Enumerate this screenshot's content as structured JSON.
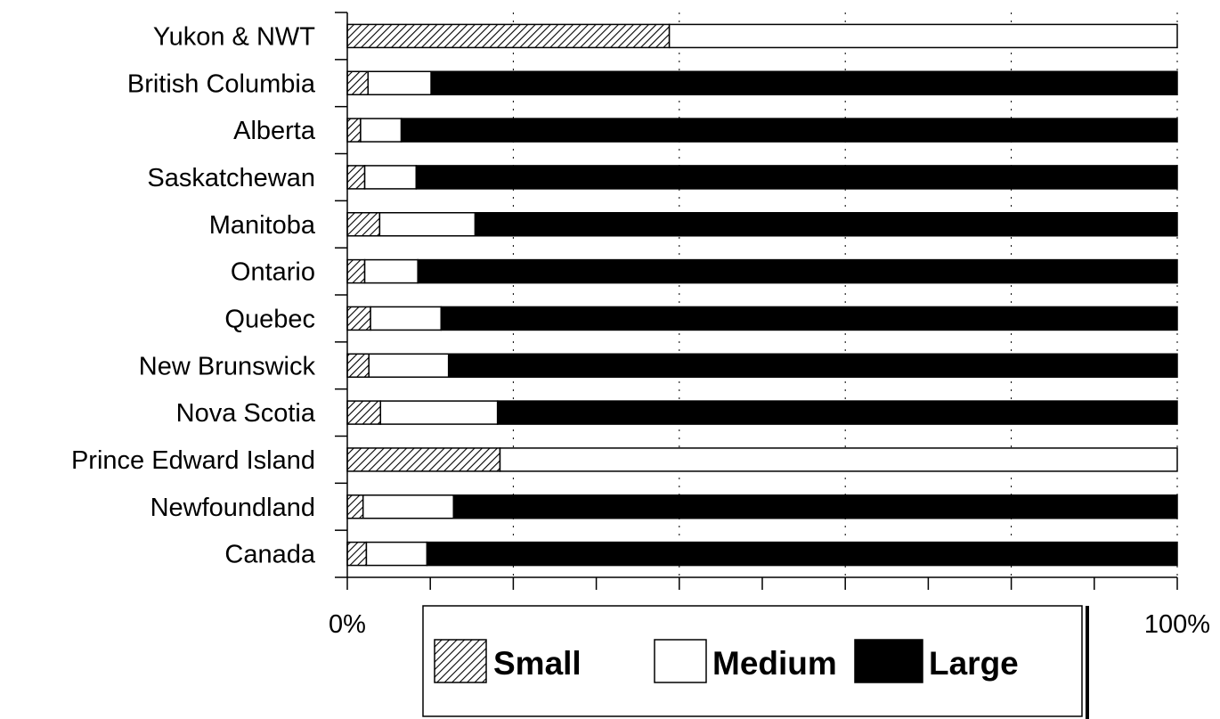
{
  "chart_data": {
    "type": "bar",
    "orientation": "horizontal",
    "stacked": "percent",
    "categories": [
      "Yukon & NWT",
      "British Columbia",
      "Alberta",
      "Saskatchewan",
      "Manitoba",
      "Ontario",
      "Quebec",
      "New Brunswick",
      "Nova Scotia",
      "Prince Edward Island",
      "Newfoundland",
      "Canada"
    ],
    "series": [
      {
        "name": "Small",
        "pattern": "hatch",
        "color": "#ffffff",
        "values": [
          38.8,
          2.5,
          1.6,
          2.1,
          3.9,
          2.1,
          2.8,
          2.6,
          4.0,
          18.4,
          1.9,
          2.3
        ]
      },
      {
        "name": "Medium",
        "color": "#ffffff",
        "values": [
          61.2,
          7.6,
          4.9,
          6.2,
          11.5,
          6.4,
          8.5,
          9.6,
          14.1,
          81.6,
          10.9,
          7.3
        ]
      },
      {
        "name": "Large",
        "color": "#000000",
        "values": [
          0,
          89.9,
          93.5,
          91.7,
          84.6,
          91.5,
          88.7,
          87.8,
          81.9,
          0,
          87.2,
          90.4
        ]
      }
    ],
    "xlim": [
      0,
      100
    ],
    "xticks": [
      "0%",
      "20%",
      "40%",
      "60%",
      "80%",
      "100%"
    ],
    "grid": "vertical-dotted",
    "legend_position": "bottom"
  }
}
